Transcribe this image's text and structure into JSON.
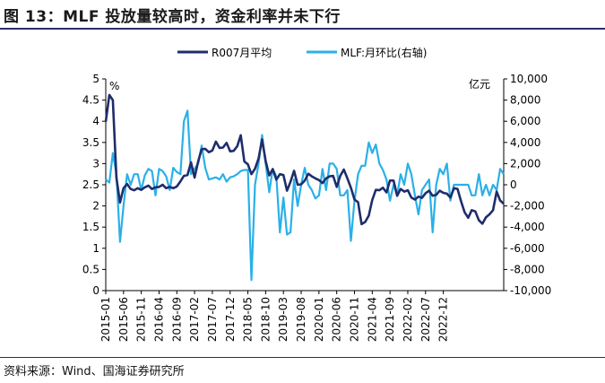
{
  "header": {
    "title": "图 13：MLF 投放量较高时，资金利率并未下行"
  },
  "footer": {
    "source": "资料来源：Wind、国海证券研究所"
  },
  "chart_data": {
    "type": "line",
    "left_unit": "%",
    "right_unit": "亿元",
    "y_left": {
      "min": 0,
      "max": 5,
      "ticks": [
        "0",
        "0.5",
        "1",
        "1.5",
        "2",
        "2.5",
        "3",
        "3.5",
        "4",
        "4.5",
        "5"
      ]
    },
    "y_right": {
      "min": -10000,
      "max": 10000,
      "ticks": [
        "-10,000",
        "-8,000",
        "-6,000",
        "-4,000",
        "-2,000",
        "0",
        "2,000",
        "4,000",
        "6,000",
        "8,000",
        "10,000"
      ]
    },
    "x_tick_labels": [
      "2015-01",
      "2015-06",
      "2015-11",
      "2016-04",
      "2016-09",
      "2017-02",
      "2017-07",
      "2017-12",
      "2018-05",
      "2018-10",
      "2019-03",
      "2019-08",
      "2020-01",
      "2020-06",
      "2020-11",
      "2021-04",
      "2021-09",
      "2022-02",
      "2022-07",
      "2022-12"
    ],
    "grid": false,
    "legend_position": "top",
    "series": [
      {
        "name": "R007月平均",
        "axis": "left",
        "color": "#1f2d6b",
        "values": [
          3.99,
          4.62,
          4.5,
          2.66,
          2.08,
          2.42,
          2.52,
          2.4,
          2.37,
          2.42,
          2.38,
          2.44,
          2.48,
          2.4,
          2.44,
          2.45,
          2.5,
          2.42,
          2.45,
          2.42,
          2.46,
          2.58,
          2.71,
          2.73,
          3.03,
          2.67,
          3.05,
          3.34,
          3.35,
          3.27,
          3.31,
          3.52,
          3.37,
          3.38,
          3.49,
          3.29,
          3.3,
          3.41,
          3.67,
          3.05,
          2.98,
          2.75,
          2.88,
          3.12,
          3.57,
          3.06,
          2.72,
          2.87,
          2.62,
          2.75,
          2.73,
          2.36,
          2.57,
          2.83,
          2.5,
          2.51,
          2.6,
          2.76,
          2.7,
          2.65,
          2.61,
          2.54,
          2.65,
          2.7,
          2.71,
          2.45,
          2.71,
          2.86,
          2.65,
          2.43,
          2.15,
          2.09,
          1.57,
          1.62,
          1.77,
          2.14,
          2.38,
          2.37,
          2.43,
          2.32,
          2.6,
          2.6,
          2.24,
          2.4,
          2.34,
          2.37,
          2.2,
          2.15,
          2.22,
          2.19,
          2.3,
          2.36,
          2.24,
          2.26,
          2.36,
          2.31,
          2.29,
          2.2,
          2.42,
          2.4,
          2.11,
          1.85,
          1.72,
          1.9,
          1.87,
          1.66,
          1.58,
          1.73,
          1.8,
          1.9,
          2.34,
          2.13,
          2.05
        ]
      },
      {
        "name": "MLF:月环比(右轴)",
        "axis": "right",
        "color": "#2ab0e8",
        "values": [
          500,
          200,
          3000,
          1000,
          -5400,
          -2000,
          1000,
          0,
          1000,
          1000,
          -500,
          900,
          1500,
          1300,
          -1000,
          1500,
          1300,
          800,
          -500,
          1600,
          1200,
          1000,
          6000,
          7000,
          1000,
          1500,
          2000,
          3700,
          1600,
          500,
          600,
          700,
          500,
          1000,
          300,
          700,
          800,
          1000,
          1300,
          1400,
          1400,
          -9000,
          0,
          2000,
          4700,
          2000,
          -700,
          1500,
          800,
          -4500,
          -1200,
          -4700,
          -4500,
          500,
          -2000,
          0,
          1600,
          0,
          -500,
          -1300,
          -1000,
          1500,
          -500,
          2000,
          2000,
          1500,
          -1000,
          -1000,
          -500,
          -5300,
          -1500,
          1000,
          1800,
          1800,
          4000,
          3000,
          3800,
          2000,
          1400,
          500,
          -1500,
          0,
          -1000,
          1000,
          0,
          2000,
          1000,
          -1000,
          -2800,
          -500,
          0,
          500,
          -4500,
          0,
          1500,
          1000,
          2000,
          -1500,
          0,
          0,
          0,
          0,
          0,
          -1000,
          -1000,
          1000,
          -1000,
          0,
          -1000,
          0,
          -500,
          1500,
          1000
        ]
      }
    ]
  }
}
